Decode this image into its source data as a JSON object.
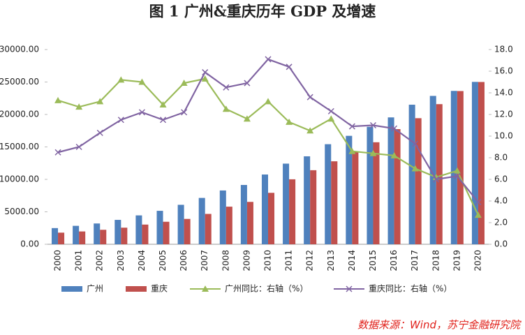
{
  "chart_data": {
    "type": "combo",
    "title": "图 1   广州&重庆历年 GDP 及增速",
    "source": "数据来源：Wind，苏宁金融研究院",
    "categories": [
      "2000",
      "2001",
      "2002",
      "2003",
      "2004",
      "2005",
      "2006",
      "2007",
      "2008",
      "2009",
      "2010",
      "2011",
      "2012",
      "2013",
      "2014",
      "2015",
      "2016",
      "2017",
      "2018",
      "2019",
      "2020"
    ],
    "series": [
      {
        "name": "广州",
        "type": "bar",
        "color": "#4f81bd",
        "values": [
          2492,
          2841,
          3203,
          3758,
          4451,
          5154,
          6081,
          7141,
          8287,
          9138,
          10748,
          12423,
          13551,
          15420,
          16707,
          18100,
          19547,
          21503,
          22859,
          23629,
          25019
        ]
      },
      {
        "name": "重庆",
        "type": "bar",
        "color": "#c0504d",
        "values": [
          1791,
          1977,
          2232,
          2556,
          3035,
          3468,
          3907,
          4676,
          5794,
          6530,
          7926,
          10011,
          11410,
          12783,
          14263,
          15717,
          17741,
          19425,
          21589,
          23606,
          25003
        ]
      },
      {
        "name": "广州同比：右轴（%）",
        "type": "line",
        "axis": "y2",
        "marker": "triangle",
        "color": "#9bbb59",
        "values": [
          13.3,
          12.7,
          13.2,
          15.2,
          15.0,
          12.9,
          14.9,
          15.3,
          12.5,
          11.6,
          13.2,
          11.3,
          10.5,
          11.6,
          8.6,
          8.4,
          8.2,
          7.0,
          6.2,
          6.8,
          2.7
        ]
      },
      {
        "name": "重庆同比：右轴（%）",
        "type": "line",
        "axis": "y2",
        "marker": "x",
        "color": "#8064a2",
        "values": [
          8.5,
          9.0,
          10.3,
          11.5,
          12.2,
          11.5,
          12.2,
          15.9,
          14.5,
          14.9,
          17.1,
          16.4,
          13.6,
          12.3,
          10.9,
          11.0,
          10.7,
          9.3,
          6.0,
          6.3,
          3.9
        ]
      }
    ],
    "ylim": [
      0,
      30000
    ],
    "yticks": [
      {
        "value": 0,
        "label": "0.00"
      },
      {
        "value": 5000,
        "label": "5000.00"
      },
      {
        "value": 10000,
        "label": "10000.00"
      },
      {
        "value": 15000,
        "label": "15000.00"
      },
      {
        "value": 20000,
        "label": "20000.00"
      },
      {
        "value": 25000,
        "label": "25000.00"
      },
      {
        "value": 30000,
        "label": "30000.00"
      }
    ],
    "y2lim": [
      0,
      18
    ],
    "y2ticks": [
      {
        "value": 0,
        "label": "0.0"
      },
      {
        "value": 2,
        "label": "2.0"
      },
      {
        "value": 4,
        "label": "4.0"
      },
      {
        "value": 6,
        "label": "6.0"
      },
      {
        "value": 8,
        "label": "8.0"
      },
      {
        "value": 10,
        "label": "10.0"
      },
      {
        "value": 12,
        "label": "12.0"
      },
      {
        "value": 14,
        "label": "14.0"
      },
      {
        "value": 16,
        "label": "16.0"
      },
      {
        "value": 18,
        "label": "18.0"
      }
    ],
    "grid": false,
    "legend": "bottom"
  }
}
